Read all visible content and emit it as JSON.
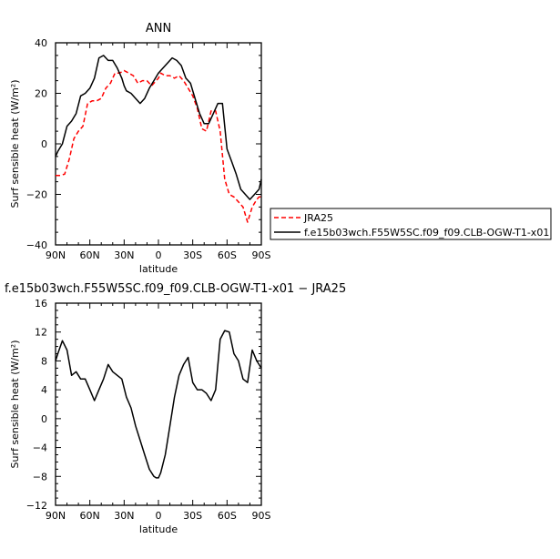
{
  "chart_data": [
    {
      "type": "line",
      "title": "ANN",
      "xlabel": "latitude",
      "ylabel": "Surf sensible heat (W/m²)",
      "xlim": [
        90,
        -90
      ],
      "ylim": [
        -40,
        40
      ],
      "x_ticks": [
        90,
        60,
        30,
        0,
        -30,
        -60,
        -90
      ],
      "x_tick_labels": [
        "90N",
        "60N",
        "30N",
        "0",
        "30S",
        "60S",
        "90S"
      ],
      "y_ticks": [
        -40,
        -20,
        0,
        20,
        40
      ],
      "y_tick_labels": [
        "−40",
        "−20",
        "0",
        "20",
        "40"
      ],
      "legend_position": "right",
      "series": [
        {
          "name": "JRA25",
          "color": "#ff0000",
          "dash": "dashed",
          "x": [
            90,
            86,
            82,
            78,
            74,
            70,
            66,
            62,
            58,
            54,
            50,
            46,
            42,
            38,
            34,
            30,
            26,
            22,
            18,
            14,
            10,
            6,
            2,
            0,
            -2,
            -6,
            -10,
            -14,
            -18,
            -22,
            -26,
            -30,
            -34,
            -38,
            -42,
            -46,
            -50,
            -54,
            -58,
            -62,
            -66,
            -70,
            -74,
            -78,
            -82,
            -86,
            -88,
            -90
          ],
          "y": [
            -12.5,
            -12.5,
            -12,
            -6,
            2,
            5,
            7,
            16,
            17,
            17,
            18,
            22,
            24,
            28,
            28,
            29,
            28,
            27,
            24,
            25,
            25,
            23,
            25,
            26,
            28,
            27,
            27,
            26,
            27,
            25,
            22,
            19,
            14,
            6,
            5,
            13,
            13,
            5,
            -14,
            -20,
            -21,
            -23,
            -25,
            -31,
            -25,
            -22,
            -21,
            -21
          ]
        },
        {
          "name": "f.e15b03wch.F55W5SC.f09_f09.CLB-OGW-T1-x01",
          "color": "#000000",
          "dash": "solid",
          "x": [
            90,
            88,
            84,
            80,
            76,
            72,
            68,
            64,
            60,
            56,
            52,
            48,
            44,
            40,
            36,
            32,
            30,
            28,
            24,
            20,
            16,
            12,
            8,
            4,
            0,
            -4,
            -8,
            -12,
            -16,
            -20,
            -24,
            -28,
            -32,
            -36,
            -40,
            -44,
            -48,
            -52,
            -56,
            -60,
            -64,
            -68,
            -72,
            -76,
            -80,
            -84,
            -88,
            -90
          ],
          "y": [
            -5,
            -3,
            0,
            7,
            9,
            12,
            19,
            20,
            22,
            26,
            34,
            35,
            33,
            33,
            30,
            26,
            23,
            21,
            20,
            18,
            16,
            18,
            22,
            25,
            28,
            30,
            32,
            34,
            33,
            31,
            26,
            24,
            18,
            12,
            8,
            8,
            12,
            16,
            16,
            -2,
            -7,
            -12,
            -18,
            -20,
            -22,
            -20,
            -18,
            -14
          ]
        }
      ]
    },
    {
      "type": "line",
      "title": "f.e15b03wch.F55W5SC.f09_f09.CLB-OGW-T1-x01  −  JRA25",
      "xlabel": "latitude",
      "ylabel": "Surf sensible heat (W/m²)",
      "xlim": [
        90,
        -90
      ],
      "ylim": [
        -12,
        16
      ],
      "x_ticks": [
        90,
        60,
        30,
        0,
        -30,
        -60,
        -90
      ],
      "x_tick_labels": [
        "90N",
        "60N",
        "30N",
        "0",
        "30S",
        "60S",
        "90S"
      ],
      "y_ticks": [
        -12,
        -8,
        -4,
        0,
        4,
        8,
        12,
        16
      ],
      "y_tick_labels": [
        "−12",
        "−8",
        "−4",
        "0",
        "4",
        "8",
        "12",
        "16"
      ],
      "series": [
        {
          "color": "#000000",
          "dash": "solid",
          "x": [
            90,
            88,
            84,
            80,
            76,
            72,
            68,
            64,
            60,
            56,
            52,
            48,
            44,
            40,
            36,
            32,
            28,
            24,
            20,
            16,
            12,
            8,
            4,
            2,
            0,
            -2,
            -6,
            -10,
            -14,
            -18,
            -22,
            -26,
            -30,
            -34,
            -38,
            -42,
            -46,
            -50,
            -54,
            -58,
            -62,
            -66,
            -70,
            -74,
            -78,
            -82,
            -86,
            -90
          ],
          "y": [
            8,
            9,
            10.8,
            9.5,
            6,
            6.5,
            5.5,
            5.5,
            4,
            2.5,
            4,
            5.5,
            7.5,
            6.5,
            6,
            5.5,
            3,
            1.5,
            -1,
            -3,
            -5,
            -7,
            -8,
            -8.2,
            -8.2,
            -7.5,
            -5,
            -1,
            3,
            6,
            7.5,
            8.5,
            5,
            4,
            4,
            3.5,
            2.5,
            4,
            11,
            12.2,
            12,
            9,
            8,
            5.5,
            5,
            9.5,
            8,
            7
          ]
        }
      ]
    }
  ]
}
